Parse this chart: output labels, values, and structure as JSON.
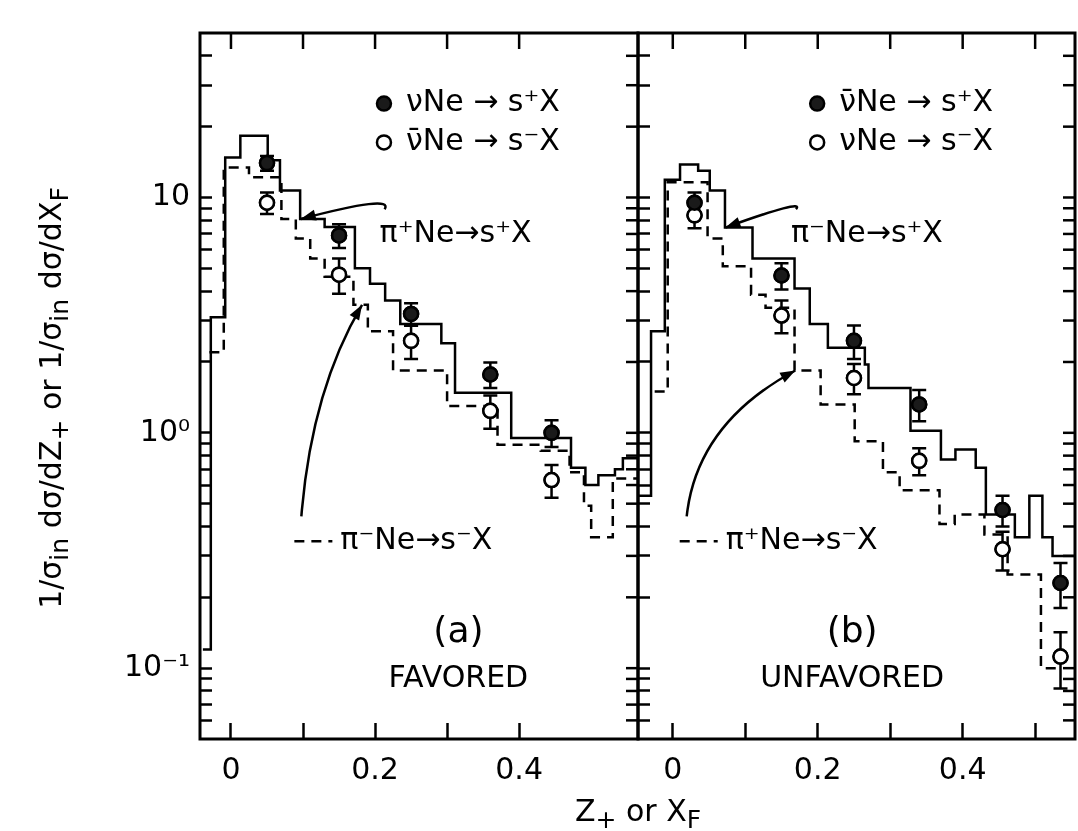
{
  "chart_data": [
    {
      "type": "step",
      "title": "(a)",
      "subtitle": "FAVORED",
      "ylabel": "1/σ$_{in}$ dσ/dZ$_{+}$ or 1/σ$_{in}$ dσ/dX$_{F}$",
      "xlabel": "Z$_{+}$ or X$_{F}$",
      "log": "y",
      "legend": "top right",
      "xlim": [
        -0.043,
        0.565
      ],
      "ylim": [
        0.05,
        50
      ],
      "xticks": [
        0,
        {
          "value": 0.1,
          "label": null
        },
        0.2,
        {
          "value": 0.3,
          "label": null
        },
        0.4
      ],
      "yticks": [
        {
          "value": 0.06,
          "label": null
        },
        {
          "value": 0.07,
          "label": null
        },
        {
          "value": 0.08,
          "label": null
        },
        {
          "value": 0.09,
          "label": null
        },
        {
          "value": 0.1,
          "label": "10⁻¹"
        },
        {
          "value": 0.2,
          "label": null
        },
        {
          "value": 0.3,
          "label": null
        },
        {
          "value": 0.4,
          "label": null
        },
        {
          "value": 0.5,
          "label": null
        },
        {
          "value": 0.6,
          "label": null
        },
        {
          "value": 0.7,
          "label": null
        },
        {
          "value": 0.8,
          "label": null
        },
        {
          "value": 0.9,
          "label": null
        },
        {
          "value": 1,
          "label": "10⁰"
        },
        {
          "value": 2,
          "label": null
        },
        {
          "value": 3,
          "label": null
        },
        {
          "value": 4,
          "label": null
        },
        {
          "value": 5,
          "label": null
        },
        {
          "value": 6,
          "label": null
        },
        {
          "value": 7,
          "label": null
        },
        {
          "value": 8,
          "label": null
        },
        {
          "value": 9,
          "label": null
        },
        10,
        {
          "value": 20,
          "label": null
        },
        {
          "value": 30,
          "label": null
        },
        {
          "value": 40,
          "label": null
        }
      ],
      "series": [
        {
          "name": "π⁺Ne→s⁺X",
          "color": "#000000",
          "line_style": "solid",
          "x": [
            -0.039,
            -0.028,
            -0.008,
            0.013,
            0.051,
            0.068,
            0.096,
            0.13,
            0.172,
            0.193,
            0.214,
            0.235,
            0.292,
            0.311,
            0.389,
            0.472,
            0.492,
            0.51,
            0.533,
            0.544,
            0.565
          ],
          "values": [
            0.12,
            3.1,
            14.8,
            18.3,
            14.4,
            10.7,
            8.1,
            7.5,
            5.0,
            4.3,
            3.65,
            2.9,
            2.4,
            1.48,
            0.95,
            0.71,
            0.6,
            0.66,
            0.7,
            0.78,
            0.78
          ]
        },
        {
          "name": "π⁻Ne→s⁻X",
          "color": "#000000",
          "line_style": "dashed",
          "x": [
            -0.03,
            -0.01,
            0.025,
            0.07,
            0.09,
            0.11,
            0.13,
            0.17,
            0.19,
            0.225,
            0.3,
            0.37,
            0.43,
            0.47,
            0.49,
            0.5,
            0.53,
            0.565
          ],
          "values": [
            2.2,
            13.4,
            12.2,
            8.1,
            6.7,
            5.5,
            4.6,
            3.5,
            2.7,
            1.84,
            1.3,
            0.89,
            0.84,
            0.68,
            0.49,
            0.36,
            0.64,
            0.64
          ]
        },
        {
          "type": "scatter",
          "name": "νNe → s⁺X",
          "color": "#1a1a1a",
          "marker": "circle",
          "x": [
            0.05,
            0.15,
            0.25,
            0.36,
            0.445
          ],
          "values": [
            14,
            6.9,
            3.2,
            1.77,
            1.0
          ],
          "errors": [
            1,
            0.8,
            0.35,
            0.22,
            0.13
          ]
        },
        {
          "type": "scatter",
          "name": "ν̄Ne → s⁻X",
          "color": "#ffffff",
          "marker": "circle",
          "x": [
            0.05,
            0.15,
            0.25,
            0.36,
            0.445
          ],
          "values": [
            9.5,
            4.7,
            2.46,
            1.24,
            0.63
          ],
          "errors": [
            1,
            0.8,
            0.4,
            0.2,
            0.1
          ]
        }
      ]
    },
    {
      "type": "step",
      "title": "(b)",
      "subtitle": "UNFAVORED",
      "log": "y",
      "legend": "top right",
      "tick_labels": "x",
      "xlim": [
        -0.048,
        0.555
      ],
      "ylim": [
        0.05,
        50
      ],
      "xticks": [
        0,
        {
          "value": 0.1,
          "label": null
        },
        0.2,
        {
          "value": 0.3,
          "label": null
        },
        0.4,
        {
          "value": 0.5,
          "label": null
        }
      ],
      "yticks": [
        {
          "value": 0.06,
          "label": null
        },
        {
          "value": 0.07,
          "label": null
        },
        {
          "value": 0.08,
          "label": null
        },
        {
          "value": 0.09,
          "label": null
        },
        {
          "value": 0.1,
          "label": null
        },
        {
          "value": 0.2,
          "label": null
        },
        {
          "value": 0.3,
          "label": null
        },
        {
          "value": 0.4,
          "label": null
        },
        {
          "value": 0.5,
          "label": null
        },
        {
          "value": 0.6,
          "label": null
        },
        {
          "value": 0.7,
          "label": null
        },
        {
          "value": 0.8,
          "label": null
        },
        {
          "value": 0.9,
          "label": null
        },
        {
          "value": 1,
          "label": null
        },
        {
          "value": 2,
          "label": null
        },
        {
          "value": 3,
          "label": null
        },
        {
          "value": 4,
          "label": null
        },
        {
          "value": 5,
          "label": null
        },
        {
          "value": 6,
          "label": null
        },
        {
          "value": 7,
          "label": null
        },
        {
          "value": 8,
          "label": null
        },
        {
          "value": 9,
          "label": null
        },
        {
          "value": 10,
          "label": null
        },
        {
          "value": 20,
          "label": null
        },
        {
          "value": 30,
          "label": null
        },
        {
          "value": 40,
          "label": null
        }
      ],
      "series": [
        {
          "name": "π⁻Ne→s⁺X",
          "color": "#000000",
          "line_style": "solid",
          "x": [
            -0.048,
            -0.03,
            -0.011,
            0.01,
            0.035,
            0.051,
            0.072,
            0.11,
            0.168,
            0.189,
            0.214,
            0.265,
            0.27,
            0.328,
            0.37,
            0.39,
            0.418,
            0.432,
            0.472,
            0.492,
            0.51,
            0.524,
            0.555
          ],
          "values": [
            0.54,
            2.7,
            11.9,
            13.8,
            13.0,
            10.7,
            7.45,
            5.5,
            4.1,
            2.9,
            2.3,
            1.95,
            1.55,
            1.02,
            0.77,
            0.85,
            0.71,
            0.45,
            0.36,
            0.54,
            0.36,
            0.3,
            0.3
          ]
        },
        {
          "name": "π⁺Ne→s⁻X",
          "color": "#000000",
          "line_style": "dashed",
          "x": [
            -0.025,
            -0.007,
            0.048,
            0.069,
            0.108,
            0.128,
            0.168,
            0.204,
            0.251,
            0.29,
            0.313,
            0.368,
            0.389,
            0.43,
            0.462,
            0.508,
            0.53
          ],
          "values": [
            1.5,
            11.6,
            6.7,
            5.1,
            3.86,
            3.4,
            1.84,
            1.32,
            0.92,
            0.68,
            0.57,
            0.41,
            0.45,
            0.37,
            0.25,
            0.1,
            0.1
          ]
        },
        {
          "type": "scatter",
          "name": "ν̄Ne → s⁺X",
          "color": "#1a1a1a",
          "marker": "circle",
          "x": [
            0.03,
            0.15,
            0.25,
            0.34,
            0.455,
            0.535
          ],
          "values": [
            9.5,
            4.66,
            2.46,
            1.32,
            0.47,
            0.23
          ],
          "errors": [
            1,
            0.6,
            0.4,
            0.2,
            0.07,
            0.05
          ]
        },
        {
          "type": "scatter",
          "name": "νNe → s⁻X",
          "color": "#ffffff",
          "marker": "circle",
          "x": [
            0.03,
            0.15,
            0.25,
            0.34,
            0.455,
            0.535
          ],
          "values": [
            8.4,
            3.15,
            1.71,
            0.76,
            0.32,
            0.112
          ],
          "errors": [
            1,
            0.5,
            0.25,
            0.1,
            0.06,
            0.03
          ]
        }
      ]
    }
  ]
}
